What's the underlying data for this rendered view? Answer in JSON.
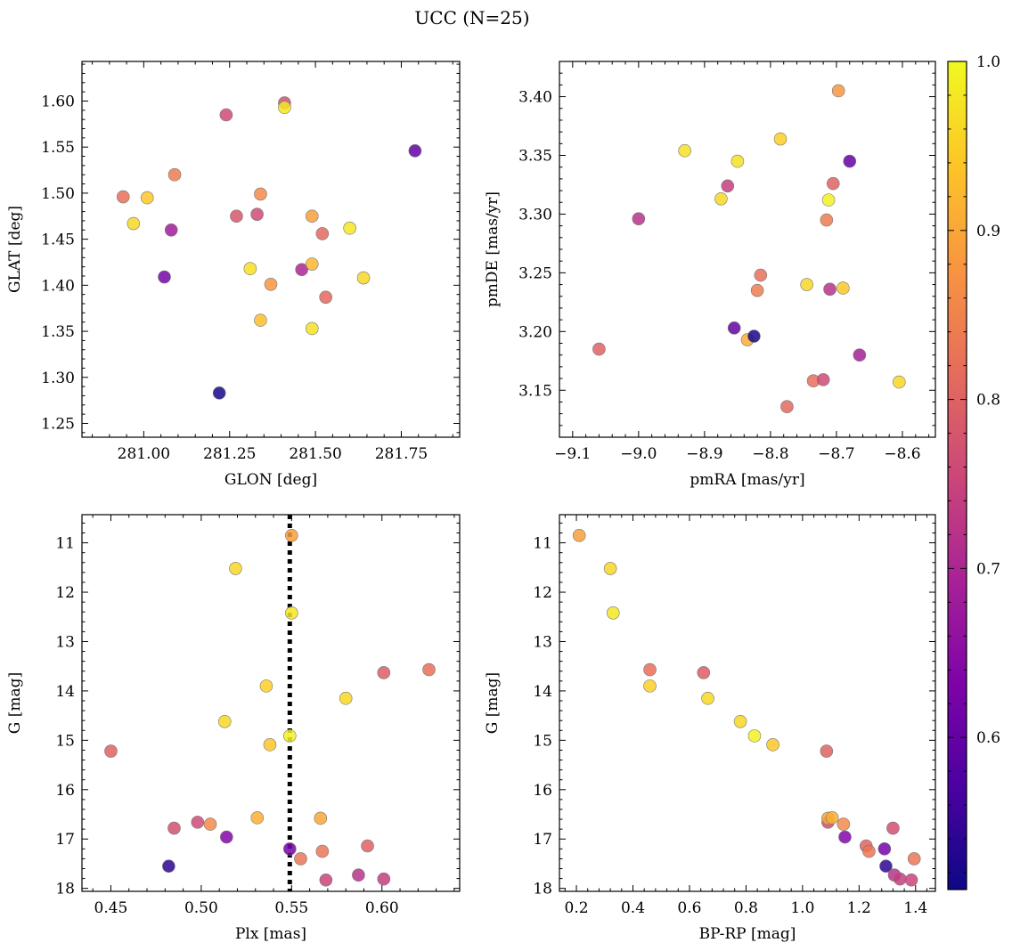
{
  "figure": {
    "title": "UCC (N=25)"
  },
  "colorbar": {
    "cmap": "plasma",
    "vmin": 0.51,
    "vmax": 1.0,
    "ticks": [
      "0.6",
      "0.7",
      "0.8",
      "0.9",
      "1.0"
    ],
    "tick_values": [
      0.6,
      0.7,
      0.8,
      0.9,
      1.0
    ]
  },
  "chart_data": [
    {
      "type": "scatter",
      "id": "glon-glat",
      "xlabel": "GLON [deg]",
      "ylabel": "GLAT [deg]",
      "xlim": [
        280.82,
        281.92
      ],
      "ylim": [
        1.235,
        1.643
      ],
      "xticks": [
        281.0,
        281.25,
        281.5,
        281.75
      ],
      "xticklabels": [
        "281.00",
        "281.25",
        "281.50",
        "281.75"
      ],
      "yticks": [
        1.25,
        1.3,
        1.35,
        1.4,
        1.45,
        1.5,
        1.55,
        1.6
      ],
      "yticklabels": [
        "1.25",
        "1.30",
        "1.35",
        "1.40",
        "1.45",
        "1.50",
        "1.55",
        "1.60"
      ],
      "invert_y": false,
      "points": [
        {
          "x": 280.94,
          "y": 1.496,
          "c": 0.82
        },
        {
          "x": 280.97,
          "y": 1.467,
          "c": 0.96
        },
        {
          "x": 281.01,
          "y": 1.495,
          "c": 0.94
        },
        {
          "x": 281.06,
          "y": 1.409,
          "c": 0.62
        },
        {
          "x": 281.08,
          "y": 1.46,
          "c": 0.68
        },
        {
          "x": 281.09,
          "y": 1.52,
          "c": 0.84
        },
        {
          "x": 281.22,
          "y": 1.283,
          "c": 0.52
        },
        {
          "x": 281.24,
          "y": 1.585,
          "c": 0.76
        },
        {
          "x": 281.27,
          "y": 1.475,
          "c": 0.78
        },
        {
          "x": 281.31,
          "y": 1.418,
          "c": 0.97
        },
        {
          "x": 281.33,
          "y": 1.477,
          "c": 0.76
        },
        {
          "x": 281.34,
          "y": 1.499,
          "c": 0.86
        },
        {
          "x": 281.34,
          "y": 1.362,
          "c": 0.93
        },
        {
          "x": 281.37,
          "y": 1.401,
          "c": 0.88
        },
        {
          "x": 281.41,
          "y": 1.598,
          "c": 0.77
        },
        {
          "x": 281.41,
          "y": 1.593,
          "c": 0.98
        },
        {
          "x": 281.46,
          "y": 1.417,
          "c": 0.7
        },
        {
          "x": 281.49,
          "y": 1.475,
          "c": 0.89
        },
        {
          "x": 281.49,
          "y": 1.423,
          "c": 0.92
        },
        {
          "x": 281.49,
          "y": 1.353,
          "c": 0.97
        },
        {
          "x": 281.52,
          "y": 1.456,
          "c": 0.81
        },
        {
          "x": 281.53,
          "y": 1.387,
          "c": 0.81
        },
        {
          "x": 281.6,
          "y": 1.462,
          "c": 0.98
        },
        {
          "x": 281.64,
          "y": 1.408,
          "c": 0.96
        },
        {
          "x": 281.79,
          "y": 1.546,
          "c": 0.6
        }
      ]
    },
    {
      "type": "scatter",
      "id": "pmra-pmde",
      "xlabel": "pmRA [mas/yr]",
      "ylabel": "pmDE [mas/yr]",
      "xlim": [
        -9.12,
        -8.55
      ],
      "ylim": [
        3.11,
        3.43
      ],
      "xticks": [
        -9.1,
        -9.0,
        -8.9,
        -8.8,
        -8.7,
        -8.6
      ],
      "xticklabels": [
        "−9.1",
        "−9.0",
        "−8.9",
        "−8.8",
        "−8.7",
        "−8.6"
      ],
      "yticks": [
        3.15,
        3.2,
        3.25,
        3.3,
        3.35,
        3.4
      ],
      "yticklabels": [
        "3.15",
        "3.20",
        "3.25",
        "3.30",
        "3.35",
        "3.40"
      ],
      "invert_y": false,
      "points": [
        {
          "x": -9.06,
          "y": 3.185,
          "c": 0.8
        },
        {
          "x": -9.0,
          "y": 3.296,
          "c": 0.72
        },
        {
          "x": -8.93,
          "y": 3.354,
          "c": 0.97
        },
        {
          "x": -8.875,
          "y": 3.313,
          "c": 0.96
        },
        {
          "x": -8.865,
          "y": 3.324,
          "c": 0.74
        },
        {
          "x": -8.855,
          "y": 3.203,
          "c": 0.6
        },
        {
          "x": -8.85,
          "y": 3.345,
          "c": 0.97
        },
        {
          "x": -8.835,
          "y": 3.193,
          "c": 0.91
        },
        {
          "x": -8.825,
          "y": 3.196,
          "c": 0.52
        },
        {
          "x": -8.82,
          "y": 3.235,
          "c": 0.84
        },
        {
          "x": -8.815,
          "y": 3.248,
          "c": 0.82
        },
        {
          "x": -8.785,
          "y": 3.364,
          "c": 0.95
        },
        {
          "x": -8.775,
          "y": 3.136,
          "c": 0.81
        },
        {
          "x": -8.745,
          "y": 3.24,
          "c": 0.96
        },
        {
          "x": -8.735,
          "y": 3.158,
          "c": 0.82
        },
        {
          "x": -8.72,
          "y": 3.159,
          "c": 0.76
        },
        {
          "x": -8.715,
          "y": 3.295,
          "c": 0.84
        },
        {
          "x": -8.712,
          "y": 3.312,
          "c": 0.99
        },
        {
          "x": -8.71,
          "y": 3.236,
          "c": 0.72
        },
        {
          "x": -8.705,
          "y": 3.326,
          "c": 0.8
        },
        {
          "x": -8.697,
          "y": 3.405,
          "c": 0.88
        },
        {
          "x": -8.69,
          "y": 3.237,
          "c": 0.94
        },
        {
          "x": -8.68,
          "y": 3.345,
          "c": 0.6
        },
        {
          "x": -8.665,
          "y": 3.18,
          "c": 0.69
        },
        {
          "x": -8.605,
          "y": 3.157,
          "c": 0.96
        }
      ]
    },
    {
      "type": "scatter",
      "id": "plx-g",
      "xlabel": "Plx [mas]",
      "ylabel": "G [mag]",
      "xlim": [
        0.434,
        0.643
      ],
      "ylim": [
        10.43,
        18.06
      ],
      "xticks": [
        0.45,
        0.5,
        0.55,
        0.6
      ],
      "xticklabels": [
        "0.45",
        "0.50",
        "0.55",
        "0.60"
      ],
      "yticks": [
        11,
        12,
        13,
        14,
        15,
        16,
        17,
        18
      ],
      "yticklabels": [
        "11",
        "12",
        "13",
        "14",
        "15",
        "16",
        "17",
        "18"
      ],
      "invert_y": true,
      "vline": 0.549,
      "points": [
        {
          "x": 0.45,
          "y": 15.22,
          "c": 0.8
        },
        {
          "x": 0.482,
          "y": 17.55,
          "c": 0.54
        },
        {
          "x": 0.485,
          "y": 16.78,
          "c": 0.77
        },
        {
          "x": 0.498,
          "y": 16.66,
          "c": 0.76
        },
        {
          "x": 0.505,
          "y": 16.7,
          "c": 0.86
        },
        {
          "x": 0.513,
          "y": 14.62,
          "c": 0.96
        },
        {
          "x": 0.514,
          "y": 16.96,
          "c": 0.64
        },
        {
          "x": 0.519,
          "y": 11.52,
          "c": 0.96
        },
        {
          "x": 0.531,
          "y": 16.57,
          "c": 0.91
        },
        {
          "x": 0.536,
          "y": 13.9,
          "c": 0.95
        },
        {
          "x": 0.538,
          "y": 15.09,
          "c": 0.94
        },
        {
          "x": 0.549,
          "y": 17.2,
          "c": 0.62
        },
        {
          "x": 0.549,
          "y": 14.91,
          "c": 0.99
        },
        {
          "x": 0.55,
          "y": 10.85,
          "c": 0.89
        },
        {
          "x": 0.55,
          "y": 12.42,
          "c": 0.98
        },
        {
          "x": 0.555,
          "y": 17.4,
          "c": 0.83
        },
        {
          "x": 0.566,
          "y": 16.58,
          "c": 0.9
        },
        {
          "x": 0.567,
          "y": 17.25,
          "c": 0.83
        },
        {
          "x": 0.569,
          "y": 17.83,
          "c": 0.75
        },
        {
          "x": 0.58,
          "y": 14.15,
          "c": 0.96
        },
        {
          "x": 0.587,
          "y": 17.73,
          "c": 0.72
        },
        {
          "x": 0.592,
          "y": 17.14,
          "c": 0.8
        },
        {
          "x": 0.601,
          "y": 13.63,
          "c": 0.79
        },
        {
          "x": 0.601,
          "y": 17.81,
          "c": 0.74
        },
        {
          "x": 0.626,
          "y": 13.57,
          "c": 0.82
        }
      ]
    },
    {
      "type": "scatter",
      "id": "bprp-g",
      "xlabel": "BP-RP [mag]",
      "ylabel": "G [mag]",
      "xlim": [
        0.14,
        1.47
      ],
      "ylim": [
        10.43,
        18.06
      ],
      "xticks": [
        0.2,
        0.4,
        0.6,
        0.8,
        1.0,
        1.2,
        1.4
      ],
      "xticklabels": [
        "0.2",
        "0.4",
        "0.6",
        "0.8",
        "1.0",
        "1.2",
        "1.4"
      ],
      "yticks": [
        11,
        12,
        13,
        14,
        15,
        16,
        17,
        18
      ],
      "yticklabels": [
        "11",
        "12",
        "13",
        "14",
        "15",
        "16",
        "17",
        "18"
      ],
      "invert_y": true,
      "points": [
        {
          "x": 0.21,
          "y": 10.85,
          "c": 0.89
        },
        {
          "x": 0.32,
          "y": 11.52,
          "c": 0.96
        },
        {
          "x": 0.33,
          "y": 12.42,
          "c": 0.98
        },
        {
          "x": 0.46,
          "y": 13.57,
          "c": 0.82
        },
        {
          "x": 0.46,
          "y": 13.9,
          "c": 0.95
        },
        {
          "x": 0.65,
          "y": 13.63,
          "c": 0.79
        },
        {
          "x": 0.665,
          "y": 14.15,
          "c": 0.96
        },
        {
          "x": 0.78,
          "y": 14.62,
          "c": 0.96
        },
        {
          "x": 0.83,
          "y": 14.91,
          "c": 0.99
        },
        {
          "x": 0.895,
          "y": 15.09,
          "c": 0.94
        },
        {
          "x": 1.085,
          "y": 15.22,
          "c": 0.8
        },
        {
          "x": 1.09,
          "y": 16.66,
          "c": 0.76
        },
        {
          "x": 1.09,
          "y": 16.58,
          "c": 0.9
        },
        {
          "x": 1.105,
          "y": 16.57,
          "c": 0.91
        },
        {
          "x": 1.145,
          "y": 16.7,
          "c": 0.86
        },
        {
          "x": 1.15,
          "y": 16.96,
          "c": 0.64
        },
        {
          "x": 1.225,
          "y": 17.14,
          "c": 0.8
        },
        {
          "x": 1.235,
          "y": 17.25,
          "c": 0.83
        },
        {
          "x": 1.29,
          "y": 17.2,
          "c": 0.62
        },
        {
          "x": 1.295,
          "y": 17.55,
          "c": 0.54
        },
        {
          "x": 1.32,
          "y": 16.78,
          "c": 0.77
        },
        {
          "x": 1.325,
          "y": 17.73,
          "c": 0.72
        },
        {
          "x": 1.345,
          "y": 17.81,
          "c": 0.74
        },
        {
          "x": 1.385,
          "y": 17.83,
          "c": 0.75
        },
        {
          "x": 1.395,
          "y": 17.4,
          "c": 0.83
        }
      ]
    }
  ]
}
